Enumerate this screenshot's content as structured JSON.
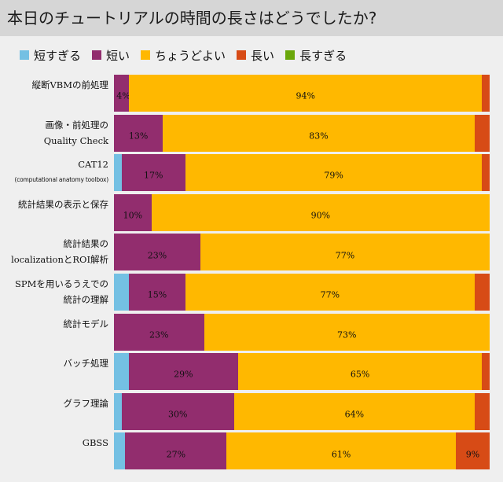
{
  "title": "本日のチュートリアルの時間の長さはどうでしたか?",
  "chart_data": {
    "type": "bar",
    "orientation": "horizontal-stacked-100",
    "title": "本日のチュートリアルの時間の長さはどうでしたか?",
    "legend_position": "top-left",
    "series": [
      {
        "name": "短すぎる",
        "color": "#74c0e3"
      },
      {
        "name": "短い",
        "color": "#922d6e"
      },
      {
        "name": "ちょうどよい",
        "color": "#ffb800"
      },
      {
        "name": "長い",
        "color": "#d74b16"
      },
      {
        "name": "長すぎる",
        "color": "#6aa70a"
      }
    ],
    "categories": [
      {
        "lines": [
          "縦断VBMの前処理"
        ],
        "values": [
          0,
          4,
          94,
          2,
          0
        ],
        "labels": [
          "",
          "4%",
          "94%",
          "",
          ""
        ]
      },
      {
        "lines": [
          "画像・前処理の",
          "Quality Check"
        ],
        "values": [
          0,
          13,
          83,
          4,
          0
        ],
        "labels": [
          "",
          "13%",
          "83%",
          "",
          ""
        ]
      },
      {
        "lines": [
          "CAT12",
          "(computational anatomy toolbox)"
        ],
        "values": [
          2,
          17,
          79,
          2,
          0
        ],
        "labels": [
          "",
          "17%",
          "79%",
          "",
          ""
        ]
      },
      {
        "lines": [
          "統計結果の表示と保存"
        ],
        "values": [
          0,
          10,
          90,
          0,
          0
        ],
        "labels": [
          "",
          "10%",
          "90%",
          "",
          ""
        ]
      },
      {
        "lines": [
          "統計結果の",
          "localizationとROI解析"
        ],
        "values": [
          0,
          23,
          77,
          0,
          0
        ],
        "labels": [
          "",
          "23%",
          "77%",
          "",
          ""
        ]
      },
      {
        "lines": [
          "SPMを用いるうえでの",
          "統計の理解"
        ],
        "values": [
          4,
          15,
          77,
          4,
          0
        ],
        "labels": [
          "",
          "15%",
          "77%",
          "",
          ""
        ]
      },
      {
        "lines": [
          "統計モデル"
        ],
        "values": [
          0,
          23,
          73,
          0,
          0
        ],
        "labels": [
          "",
          "23%",
          "73%",
          "",
          ""
        ]
      },
      {
        "lines": [
          "バッチ処理"
        ],
        "values": [
          4,
          29,
          65,
          2,
          0
        ],
        "labels": [
          "",
          "29%",
          "65%",
          "",
          ""
        ]
      },
      {
        "lines": [
          "グラフ理論"
        ],
        "values": [
          2,
          30,
          64,
          4,
          0
        ],
        "labels": [
          "",
          "30%",
          "64%",
          "",
          ""
        ]
      },
      {
        "lines": [
          "GBSS"
        ],
        "values": [
          3,
          27,
          61,
          9,
          0
        ],
        "labels": [
          "",
          "27%",
          "61%",
          "9%",
          ""
        ]
      }
    ],
    "xlim": [
      0,
      100
    ],
    "grid": false
  }
}
